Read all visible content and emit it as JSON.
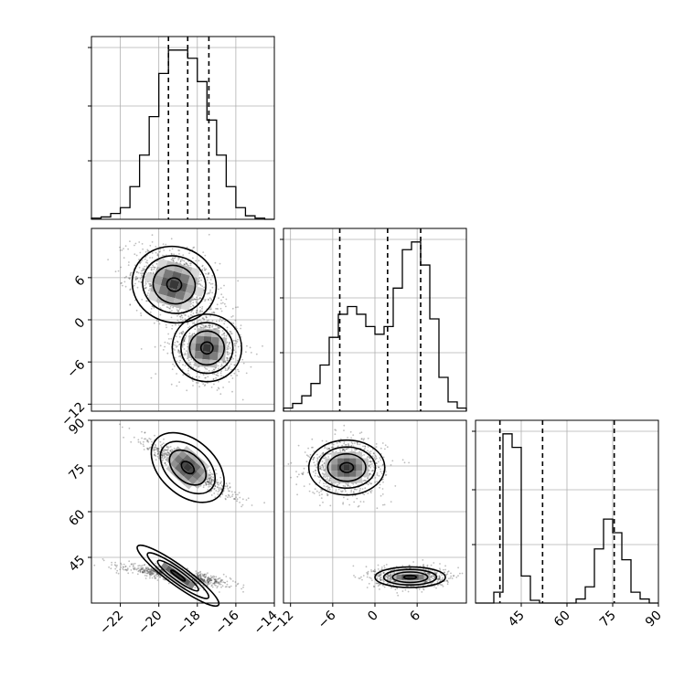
{
  "chart_data": {
    "type": "corner",
    "title": "",
    "parameters": [
      {
        "ticks": [
          -22,
          -20,
          -18,
          -16,
          -14
        ],
        "tick_labels": [
          "−22",
          "−20",
          "−18",
          "−16",
          "−14"
        ],
        "range": [
          -23.5,
          -14
        ],
        "quantiles": [
          -19.5,
          -18.5,
          -17.4
        ]
      },
      {
        "ticks": [
          -12,
          -6,
          0,
          6
        ],
        "tick_labels": [
          "−12",
          "−6",
          "0",
          "6"
        ],
        "range": [
          -13,
          13
        ],
        "quantiles": [
          -5,
          1.8,
          6.5
        ]
      },
      {
        "ticks": [
          45,
          60,
          75,
          90
        ],
        "tick_labels": [
          "45",
          "60",
          "75",
          "90"
        ],
        "range": [
          30,
          90
        ],
        "quantiles": [
          38,
          52,
          75.5
        ]
      }
    ],
    "histograms": [
      {
        "bin_edges": [
          -23.5,
          -23.0,
          -22.5,
          -22.0,
          -21.5,
          -21.0,
          -20.5,
          -20.0,
          -19.5,
          -19.0,
          -18.5,
          -18.0,
          -17.5,
          -17.0,
          -16.5,
          -16.0,
          -15.5,
          -15.0,
          -14.5,
          -14.0
        ],
        "counts": [
          1,
          2,
          5,
          10,
          28,
          55,
          88,
          125,
          145,
          145,
          138,
          118,
          85,
          55,
          28,
          10,
          3,
          1,
          0
        ]
      },
      {
        "bin_edges": [
          -13,
          -11.7,
          -10.4,
          -9.1,
          -7.8,
          -6.5,
          -5.2,
          -3.9,
          -2.6,
          -1.3,
          0,
          1.3,
          2.6,
          3.9,
          5.2,
          6.5,
          7.8,
          9.1,
          10.4,
          11.7,
          13
        ],
        "counts": [
          2,
          5,
          10,
          18,
          30,
          48,
          63,
          68,
          63,
          55,
          50,
          55,
          80,
          105,
          110,
          95,
          60,
          22,
          6,
          2
        ]
      },
      {
        "bin_edges": [
          30,
          33,
          36,
          39,
          42,
          45,
          48,
          51,
          54,
          57,
          60,
          63,
          66,
          69,
          72,
          75,
          78,
          81,
          84,
          87,
          90
        ],
        "counts": [
          0,
          0,
          8,
          125,
          115,
          20,
          2,
          0,
          0,
          0,
          0,
          3,
          12,
          40,
          62,
          52,
          32,
          8,
          3,
          0
        ]
      }
    ],
    "joint_modes": [
      {
        "pair": [
          0,
          1
        ],
        "modes": [
          {
            "center": [
              -19.2,
              5.0
            ],
            "sd": [
              1.1,
              2.7
            ],
            "rho": -0.35,
            "weight": 0.55
          },
          {
            "center": [
              -17.5,
              -4.0
            ],
            "sd": [
              0.9,
              2.4
            ],
            "rho": -0.1,
            "weight": 0.45
          }
        ]
      },
      {
        "pair": [
          0,
          2
        ],
        "modes": [
          {
            "center": [
              -18.5,
              74.5
            ],
            "sd": [
              1.1,
              4.5
            ],
            "rho": -0.93,
            "weight": 0.5
          },
          {
            "center": [
              -19.0,
              39.0
            ],
            "sd": [
              1.3,
              1.6
            ],
            "rho": -0.8,
            "weight": 0.5
          }
        ]
      },
      {
        "pair": [
          1,
          2
        ],
        "modes": [
          {
            "center": [
              -4.0,
              74.5
            ],
            "sd": [
              2.7,
              4.5
            ],
            "rho": 0.0,
            "weight": 0.5
          },
          {
            "center": [
              5.0,
              38.5
            ],
            "sd": [
              2.5,
              1.7
            ],
            "rho": 0.0,
            "weight": 0.5
          }
        ]
      }
    ],
    "grid": true,
    "quantile_line_style": "dashed"
  }
}
